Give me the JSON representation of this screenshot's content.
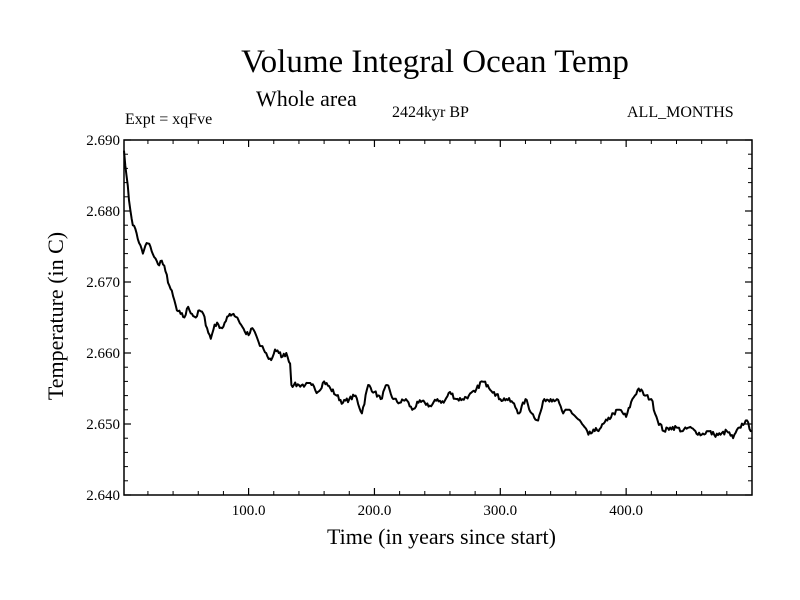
{
  "chart_data": {
    "type": "line",
    "title": "Volume Integral Ocean Temp",
    "subtitle": "Whole area",
    "experiment_label": "Expt = xqFve",
    "period_label": "2424kyr BP",
    "months_label": "ALL_MONTHS",
    "xlabel": "Time (in years since start)",
    "ylabel": "Temperature (in C)",
    "xlim": [
      1,
      500
    ],
    "ylim": [
      2.64,
      2.69
    ],
    "xticks": [
      100,
      200,
      300,
      400
    ],
    "xtick_labels": [
      "100.0",
      "200.0",
      "300.0",
      "400.0"
    ],
    "yticks": [
      2.64,
      2.65,
      2.66,
      2.67,
      2.68,
      2.69
    ],
    "ytick_labels": [
      "2.640",
      "2.650",
      "2.660",
      "2.670",
      "2.680",
      "2.690"
    ],
    "grid": false,
    "series": [
      {
        "name": "Volume Integral Ocean Temp",
        "color": "#000000",
        "x": [
          1,
          3,
          5,
          8,
          10,
          13,
          16,
          19,
          22,
          25,
          28,
          31,
          34,
          37,
          40,
          43,
          46,
          49,
          52,
          55,
          58,
          61,
          64,
          67,
          70,
          73,
          76,
          79,
          82,
          85,
          88,
          91,
          94,
          97,
          100,
          103,
          106,
          109,
          112,
          115,
          118,
          121,
          124,
          127,
          130,
          133,
          134,
          136,
          140,
          145,
          150,
          155,
          160,
          165,
          170,
          175,
          180,
          185,
          190,
          195,
          200,
          205,
          210,
          215,
          220,
          225,
          230,
          235,
          240,
          245,
          250,
          255,
          260,
          265,
          270,
          275,
          280,
          285,
          290,
          295,
          300,
          305,
          310,
          315,
          320,
          325,
          330,
          335,
          340,
          345,
          350,
          355,
          360,
          365,
          370,
          375,
          380,
          385,
          390,
          395,
          400,
          405,
          410,
          415,
          420,
          425,
          430,
          435,
          440,
          445,
          450,
          455,
          460,
          465,
          470,
          475,
          480,
          485,
          490,
          495,
          500
        ],
        "values": [
          2.6885,
          2.685,
          2.6815,
          2.678,
          2.6775,
          2.6755,
          2.674,
          2.6755,
          2.675,
          2.6735,
          2.6725,
          2.673,
          2.6715,
          2.6695,
          2.668,
          2.666,
          2.6655,
          2.665,
          2.6665,
          2.6655,
          2.665,
          2.666,
          2.6655,
          2.6635,
          2.662,
          2.664,
          2.664,
          2.6635,
          2.6645,
          2.6655,
          2.6655,
          2.665,
          2.664,
          2.663,
          2.6625,
          2.6635,
          2.6625,
          2.661,
          2.6605,
          2.6595,
          2.659,
          2.6605,
          2.66,
          2.6595,
          2.66,
          2.6585,
          2.6555,
          2.6555,
          2.6555,
          2.6555,
          2.6555,
          2.6545,
          2.656,
          2.655,
          2.654,
          2.653,
          2.6535,
          2.654,
          2.6515,
          2.6555,
          2.6545,
          2.6535,
          2.6555,
          2.6535,
          2.653,
          2.6535,
          2.652,
          2.653,
          2.653,
          2.6525,
          2.6535,
          2.653,
          2.6545,
          2.6535,
          2.6535,
          2.654,
          2.6545,
          2.656,
          2.6555,
          2.6545,
          2.6535,
          2.6535,
          2.653,
          2.6515,
          2.6535,
          2.6515,
          2.6505,
          2.6535,
          2.6535,
          2.6535,
          2.6515,
          2.652,
          2.651,
          2.65,
          2.6485,
          2.649,
          2.6495,
          2.6505,
          2.6515,
          2.652,
          2.651,
          2.6535,
          2.655,
          2.654,
          2.6535,
          2.6505,
          2.649,
          2.6495,
          2.6495,
          2.649,
          2.6495,
          2.649,
          2.6485,
          2.649,
          2.6485,
          2.6485,
          2.649,
          2.648,
          2.6495,
          2.6505,
          2.649
        ]
      }
    ]
  }
}
